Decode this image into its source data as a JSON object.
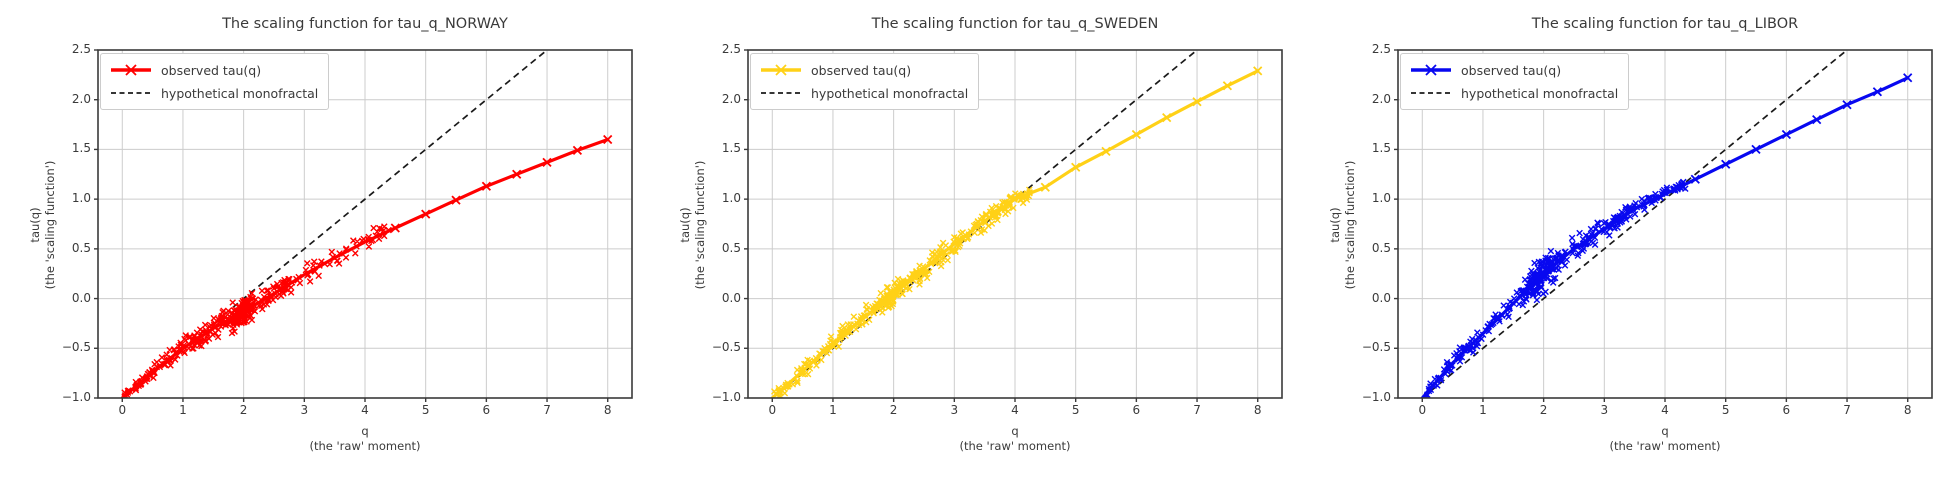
{
  "figure": {
    "background": "#ffffff",
    "grid_color": "#cccccc",
    "spine_color": "#3a3a3a",
    "tick_color": "#3a3a3a",
    "text_color": "#3a3a3a",
    "monofractal_color": "#1a1a1a"
  },
  "axes": {
    "xlabel_line1": "q",
    "xlabel_line2": "(the 'raw' moment)",
    "ylabel_line1": "tau(q)",
    "ylabel_line2": "(the 'scaling function')",
    "x_tick_labels": [
      "0",
      "1",
      "2",
      "3",
      "4",
      "5",
      "6",
      "7",
      "8"
    ],
    "y_tick_labels_desc": [
      "2.5",
      "2.0",
      "1.5",
      "1.0",
      "0.5",
      "0.0",
      "−0.5",
      "−1.0"
    ],
    "x_ticks": [
      0,
      1,
      2,
      3,
      4,
      5,
      6,
      7,
      8
    ],
    "y_ticks": [
      2.5,
      2.0,
      1.5,
      1.0,
      0.5,
      0.0,
      -0.5,
      -1.0
    ],
    "xlim": [
      -0.4,
      8.4
    ],
    "ylim": [
      -1.0,
      2.5
    ],
    "grid": true
  },
  "legend": {
    "observed_label": "observed tau(q)",
    "mono_label": "hypothetical monofractal",
    "position": "upper left"
  },
  "chart_data": [
    {
      "type": "line",
      "title": "The scaling function for tau_q_NORWAY",
      "series": [
        {
          "name": "observed tau(q)",
          "color": "#ff0000",
          "marker": "x",
          "x": [
            0,
            0.5,
            1,
            1.5,
            2,
            2.5,
            3,
            3.5,
            4,
            4.5,
            5,
            5.5,
            6,
            6.5,
            7,
            7.5,
            8
          ],
          "y": [
            -1.0,
            -0.74,
            -0.5,
            -0.3,
            -0.13,
            0.05,
            0.24,
            0.41,
            0.57,
            0.71,
            0.85,
            0.99,
            1.13,
            1.25,
            1.37,
            1.49,
            1.6
          ]
        },
        {
          "name": "hypothetical monofractal",
          "color": "#1a1a1a",
          "style": "dashed",
          "x": [
            0,
            7
          ],
          "y": [
            -1.0,
            2.5
          ]
        }
      ],
      "scatter": {
        "seed": 11,
        "bands": [
          {
            "q0": 0.02,
            "q1": 2.8,
            "n": 240,
            "sigma": "bell"
          },
          {
            "q0": 2.6,
            "q1": 4.4,
            "n": 55,
            "sigma": 0.045
          }
        ],
        "bell": {
          "jmin": 0.01,
          "jmax": 0.07,
          "jc": 1.7,
          "jw": 1.1
        },
        "blob": {
          "q": 1.95,
          "sd": 0.1,
          "n": 70,
          "jitter": 0.05
        },
        "clean_q": [
          4.5,
          5,
          5.5,
          6,
          6.5,
          7,
          7.5,
          8
        ]
      }
    },
    {
      "type": "line",
      "title": "The scaling function for tau_q_SWEDEN",
      "series": [
        {
          "name": "observed tau(q)",
          "color": "#ffd117",
          "marker": "x",
          "x": [
            0,
            0.5,
            1,
            1.5,
            2,
            2.5,
            3,
            3.5,
            4,
            4.5,
            5,
            5.5,
            6,
            6.5,
            7,
            7.5,
            8
          ],
          "y": [
            -1.0,
            -0.73,
            -0.45,
            -0.2,
            0.05,
            0.3,
            0.55,
            0.78,
            1.0,
            1.12,
            1.32,
            1.48,
            1.65,
            1.82,
            1.98,
            2.14,
            2.29
          ]
        },
        {
          "name": "hypothetical monofractal",
          "color": "#1a1a1a",
          "style": "dashed",
          "x": [
            0,
            7
          ],
          "y": [
            -1.0,
            2.5
          ]
        }
      ],
      "scatter": {
        "seed": 22,
        "bands": [
          {
            "q0": 0.02,
            "q1": 4.25,
            "n": 300,
            "sigma": "bell"
          }
        ],
        "bell": {
          "jmin": 0.012,
          "jmax": 0.055,
          "jc": 2.2,
          "jw": 2.2
        },
        "blob": {
          "q": 2.0,
          "sd": 0.15,
          "n": 50,
          "jitter": 0.05
        },
        "clean_q": [
          4.5,
          5,
          5.5,
          6,
          6.5,
          7,
          7.5,
          8
        ]
      }
    },
    {
      "type": "line",
      "title": "The scaling function for tau_q_LIBOR",
      "series": [
        {
          "name": "observed tau(q)",
          "color": "#0808f0",
          "marker": "x",
          "x": [
            0,
            0.5,
            1,
            1.5,
            2,
            2.5,
            3,
            3.5,
            4,
            4.5,
            5,
            5.5,
            6,
            6.5,
            7,
            7.5,
            8
          ],
          "y": [
            -1.0,
            -0.65,
            -0.35,
            -0.05,
            0.25,
            0.5,
            0.7,
            0.9,
            1.05,
            1.2,
            1.35,
            1.5,
            1.65,
            1.8,
            1.95,
            2.08,
            2.22
          ]
        },
        {
          "name": "hypothetical monofractal",
          "color": "#1a1a1a",
          "style": "dashed",
          "x": [
            0,
            7
          ],
          "y": [
            -1.0,
            2.5
          ]
        }
      ],
      "scatter": {
        "seed": 33,
        "bands": [
          {
            "q0": 0.02,
            "q1": 4.35,
            "n": 300,
            "sigma": "bell"
          }
        ],
        "bell": {
          "jmin": 0.012,
          "jmax": 0.06,
          "jc": 2.0,
          "jw": 1.8
        },
        "blob": {
          "q": 1.95,
          "sd": 0.12,
          "n": 80,
          "jitter": 0.09
        },
        "clean_q": [
          4.5,
          5,
          5.5,
          6,
          6.5,
          7,
          7.5,
          8
        ]
      }
    }
  ]
}
